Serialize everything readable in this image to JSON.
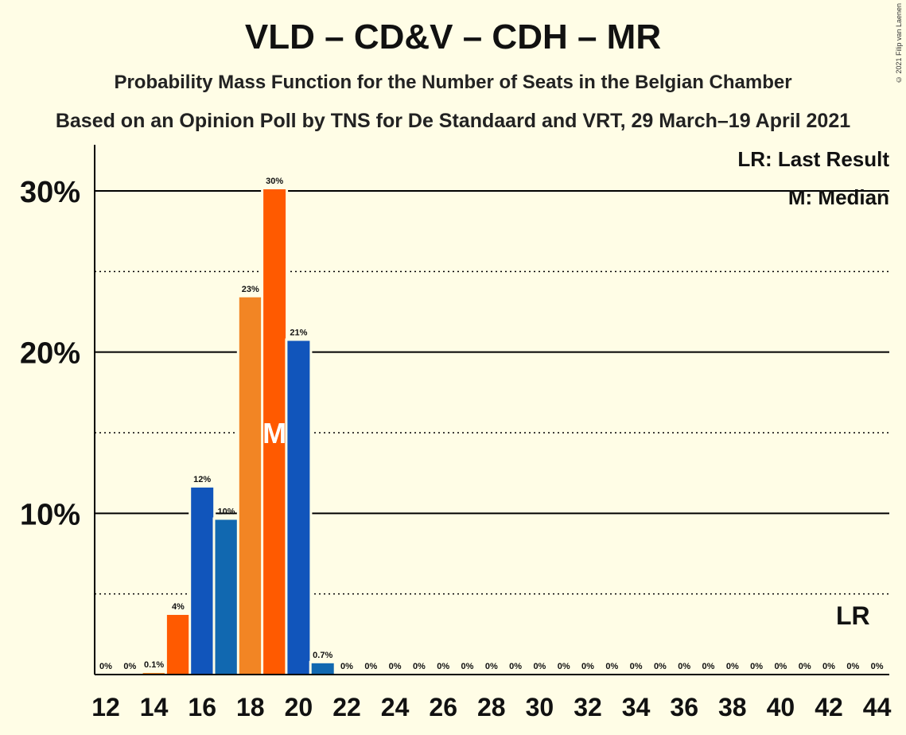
{
  "title": "VLD – CD&V – CDH – MR",
  "subtitle": "Probability Mass Function for the Number of Seats in the Belgian Chamber",
  "subtitle2": "Based on an Opinion Poll by TNS for De Standaard and VRT, 29 March–19 April 2021",
  "copyright": "© 2021 Filip van Laenen",
  "legend": {
    "last_result": "LR: Last Result",
    "median": "M: Median"
  },
  "markers": {
    "median_label": "M",
    "median_seat": 19,
    "last_result_label": "LR",
    "last_result_seat": 43
  },
  "colors": {
    "blue_dark": "#1155BB",
    "blue_mid": "#1168B0",
    "orange": "#F28524",
    "orange_red": "#FF5A00",
    "background": "#FFFDE6"
  },
  "chart_data": {
    "type": "bar",
    "x": [
      12,
      13,
      14,
      15,
      16,
      17,
      18,
      19,
      20,
      21,
      22,
      23,
      24,
      25,
      26,
      27,
      28,
      29,
      30,
      31,
      32,
      33,
      34,
      35,
      36,
      37,
      38,
      39,
      40,
      41,
      42,
      43,
      44
    ],
    "values": [
      0,
      0,
      0.1,
      3.7,
      11.6,
      9.6,
      23.4,
      30.1,
      20.7,
      0.7,
      0,
      0,
      0,
      0,
      0,
      0,
      0,
      0,
      0,
      0,
      0,
      0,
      0,
      0,
      0,
      0,
      0,
      0,
      0,
      0,
      0,
      0,
      0
    ],
    "labels": [
      "0%",
      "0%",
      "0.1%",
      "4%",
      "12%",
      "10%",
      "23%",
      "30%",
      "21%",
      "0.7%",
      "0%",
      "0%",
      "0%",
      "0%",
      "0%",
      "0%",
      "0%",
      "0%",
      "0%",
      "0%",
      "0%",
      "0%",
      "0%",
      "0%",
      "0%",
      "0%",
      "0%",
      "0%",
      "0%",
      "0%",
      "0%",
      "0%",
      "0%"
    ],
    "bar_colors": [
      "#1155BB",
      "#1168B0",
      "#F28524",
      "#FF5A00",
      "#1155BB",
      "#1168B0",
      "#F28524",
      "#FF5A00",
      "#1155BB",
      "#1168B0",
      "#F28524",
      "#FF5A00",
      "#1155BB",
      "#1168B0",
      "#F28524",
      "#FF5A00",
      "#1155BB",
      "#1168B0",
      "#F28524",
      "#FF5A00",
      "#1155BB",
      "#1168B0",
      "#F28524",
      "#FF5A00",
      "#1155BB",
      "#1168B0",
      "#F28524",
      "#FF5A00",
      "#1155BB",
      "#1168B0",
      "#F28524",
      "#FF5A00",
      "#1155BB"
    ],
    "x_ticks": [
      12,
      14,
      16,
      18,
      20,
      22,
      24,
      26,
      28,
      30,
      32,
      34,
      36,
      38,
      40,
      42,
      44
    ],
    "y_ticks": [
      "10%",
      "20%",
      "30%"
    ],
    "y_tick_values": [
      10,
      20,
      30
    ],
    "y_minor_gridlines": [
      5,
      15,
      25
    ],
    "ylim": [
      0,
      33
    ],
    "grid": true,
    "legend_position": "top-right"
  }
}
